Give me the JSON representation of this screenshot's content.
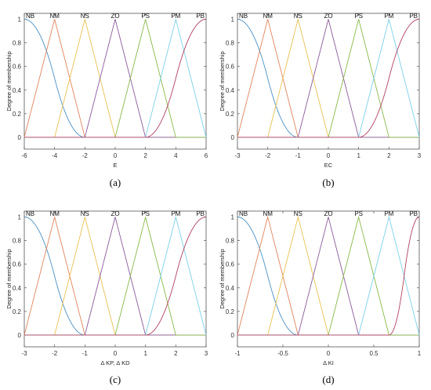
{
  "colors": {
    "NB": "#4a90c4",
    "NM": "#e0845a",
    "NS": "#e8c050",
    "ZO": "#8a5a9a",
    "PS": "#88b848",
    "PM": "#7ad0e8",
    "PB": "#b04060",
    "zero_line": "#e8485a"
  },
  "chart_data": [
    {
      "type": "line",
      "caption": "(a)",
      "xlabel": "E",
      "ylabel": "Degree of membership",
      "xlim": [
        -6,
        6
      ],
      "ylim": [
        -0.1,
        1.05
      ],
      "xticks": [
        -6,
        -4,
        -2,
        0,
        2,
        4,
        6
      ],
      "yticks": [
        0,
        0.2,
        0.4,
        0.6,
        0.8,
        1
      ],
      "mf_labels": [
        "NB",
        "NM",
        "NS",
        "ZO",
        "PS",
        "PM",
        "PB"
      ],
      "series": [
        {
          "name": "NB",
          "shape": "z",
          "params": [
            -6,
            -2
          ]
        },
        {
          "name": "NM",
          "shape": "triangle",
          "params": [
            -6,
            -4,
            -2
          ]
        },
        {
          "name": "NS",
          "shape": "triangle",
          "params": [
            -4,
            -2,
            0
          ]
        },
        {
          "name": "ZO",
          "shape": "triangle",
          "params": [
            -2,
            0,
            2
          ]
        },
        {
          "name": "PS",
          "shape": "triangle",
          "params": [
            0,
            2,
            4
          ]
        },
        {
          "name": "PM",
          "shape": "triangle",
          "params": [
            2,
            4,
            6
          ]
        },
        {
          "name": "PB",
          "shape": "s",
          "params": [
            2,
            6
          ]
        }
      ]
    },
    {
      "type": "line",
      "caption": "(b)",
      "xlabel": "EC",
      "ylabel": "Degree of membership",
      "xlim": [
        -3,
        3
      ],
      "ylim": [
        -0.1,
        1.05
      ],
      "xticks": [
        -3,
        -2,
        -1,
        0,
        1,
        2,
        3
      ],
      "yticks": [
        0,
        0.2,
        0.4,
        0.6,
        0.8,
        1
      ],
      "mf_labels": [
        "NB",
        "NM",
        "NS",
        "ZO",
        "PS",
        "PM",
        "PB"
      ],
      "series": [
        {
          "name": "NB",
          "shape": "z",
          "params": [
            -3,
            -1
          ]
        },
        {
          "name": "NM",
          "shape": "triangle",
          "params": [
            -3,
            -2,
            -1
          ]
        },
        {
          "name": "NS",
          "shape": "triangle",
          "params": [
            -2,
            -1,
            0
          ]
        },
        {
          "name": "ZO",
          "shape": "triangle",
          "params": [
            -1,
            0,
            1
          ]
        },
        {
          "name": "PS",
          "shape": "triangle",
          "params": [
            0,
            1,
            2
          ]
        },
        {
          "name": "PM",
          "shape": "triangle",
          "params": [
            1,
            2,
            3
          ]
        },
        {
          "name": "PB",
          "shape": "s",
          "params": [
            1,
            3
          ]
        }
      ]
    },
    {
      "type": "line",
      "caption": "(c)",
      "xlabel": "Δ KP, Δ KD",
      "ylabel": "Degree of membership",
      "xlim": [
        -3,
        3
      ],
      "ylim": [
        -0.1,
        1.05
      ],
      "xticks": [
        -3,
        -2,
        -1,
        0,
        1,
        2,
        3
      ],
      "yticks": [
        0,
        0.2,
        0.4,
        0.6,
        0.8,
        1
      ],
      "mf_labels": [
        "NB",
        "NM",
        "NS",
        "ZO",
        "PS",
        "PM",
        "PB"
      ],
      "series": [
        {
          "name": "NB",
          "shape": "z",
          "params": [
            -3,
            -1
          ]
        },
        {
          "name": "NM",
          "shape": "triangle",
          "params": [
            -3,
            -2,
            -1
          ]
        },
        {
          "name": "NS",
          "shape": "triangle",
          "params": [
            -2,
            -1,
            0
          ]
        },
        {
          "name": "ZO",
          "shape": "triangle",
          "params": [
            -1,
            0,
            1
          ]
        },
        {
          "name": "PS",
          "shape": "triangle",
          "params": [
            0,
            1,
            2
          ]
        },
        {
          "name": "PM",
          "shape": "triangle",
          "params": [
            1,
            2,
            3
          ]
        },
        {
          "name": "PB",
          "shape": "s",
          "params": [
            1,
            3
          ]
        }
      ]
    },
    {
      "type": "line",
      "caption": "(d)",
      "xlabel": "Δ KI",
      "ylabel": "Degree of membership",
      "xlim": [
        -1,
        1
      ],
      "ylim": [
        -0.1,
        1.05
      ],
      "xticks": [
        -1,
        -0.5,
        0,
        0.5,
        1
      ],
      "yticks": [
        0,
        0.2,
        0.4,
        0.6,
        0.8,
        1
      ],
      "mf_labels": [
        "NB",
        "NM",
        "NS",
        "ZO",
        "PS",
        "PM",
        "PB"
      ],
      "series": [
        {
          "name": "NB",
          "shape": "z",
          "params": [
            -1,
            -0.333
          ]
        },
        {
          "name": "NM",
          "shape": "triangle",
          "params": [
            -1,
            -0.667,
            -0.333
          ]
        },
        {
          "name": "NS",
          "shape": "triangle",
          "params": [
            -0.667,
            -0.333,
            0
          ]
        },
        {
          "name": "ZO",
          "shape": "triangle",
          "params": [
            -0.333,
            0,
            0.333
          ]
        },
        {
          "name": "PS",
          "shape": "triangle",
          "params": [
            0,
            0.333,
            0.667
          ]
        },
        {
          "name": "PM",
          "shape": "triangle",
          "params": [
            0.333,
            0.667,
            1
          ]
        },
        {
          "name": "PB",
          "shape": "s",
          "params": [
            0.667,
            1
          ]
        }
      ]
    }
  ]
}
